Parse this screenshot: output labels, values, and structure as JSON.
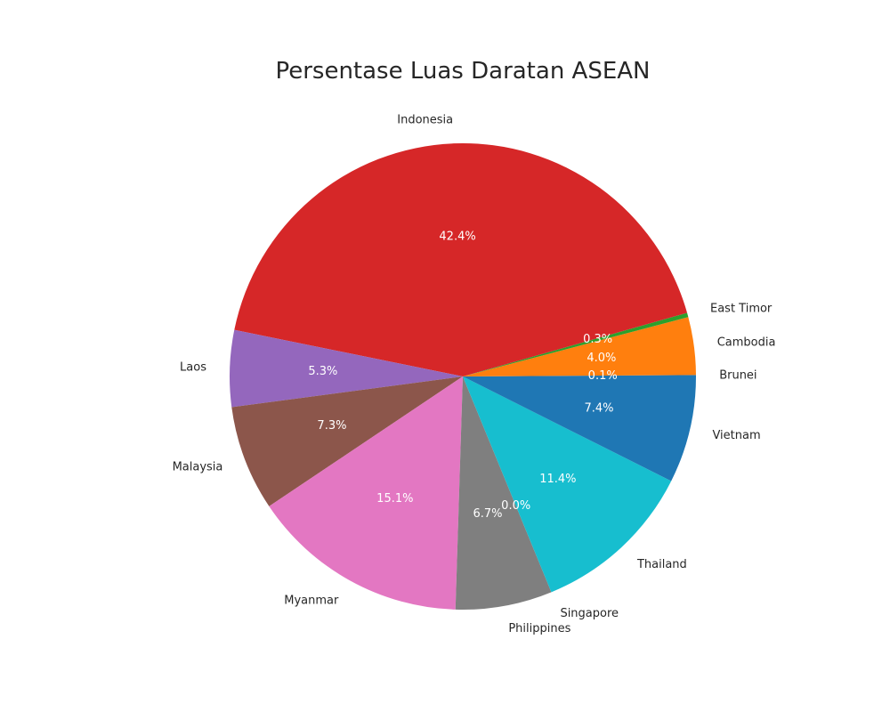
{
  "chart_data": {
    "type": "pie",
    "title": "Persentase Luas Daratan ASEAN",
    "autopct_format": "{v}%",
    "start_angle_deg": 0,
    "direction": "counterclockwise",
    "slices": [
      {
        "label": "Brunei",
        "value": 0.1,
        "pct_text": "0.1%",
        "color": "#1f77b4_placeholder"
      },
      {
        "label": "Cambodia",
        "value": 4.0,
        "pct_text": "4.0%",
        "color": "#ff7f0e"
      },
      {
        "label": "East Timor",
        "value": 0.3,
        "pct_text": "0.3%",
        "color": "#2ca02c"
      },
      {
        "label": "Indonesia",
        "value": 42.4,
        "pct_text": "42.4%",
        "color": "#d62728"
      },
      {
        "label": "Laos",
        "value": 5.3,
        "pct_text": "5.3%",
        "color": "#9467bd"
      },
      {
        "label": "Malaysia",
        "value": 7.3,
        "pct_text": "7.3%",
        "color": "#8c564b"
      },
      {
        "label": "Myanmar",
        "value": 15.1,
        "pct_text": "15.1%",
        "color": "#e377c2"
      },
      {
        "label": "Philippines",
        "value": 6.7,
        "pct_text": "6.7%",
        "color": "#7f7f7f"
      },
      {
        "label": "Singapore",
        "value": 0.0,
        "pct_text": "0.0%",
        "color": "#bcbd22"
      },
      {
        "label": "Thailand",
        "value": 11.4,
        "pct_text": "11.4%",
        "color": "#17becf"
      },
      {
        "label": "Vietnam",
        "value": 7.4,
        "pct_text": "7.4%",
        "color": "#1f77b4"
      }
    ]
  }
}
